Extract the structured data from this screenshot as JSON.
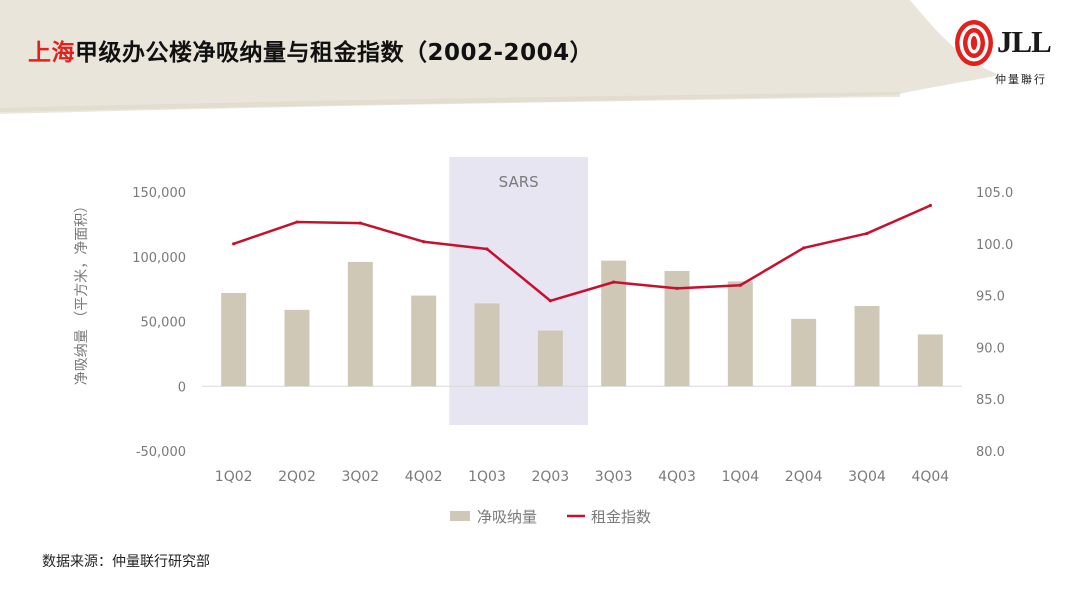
{
  "slide": {
    "title_highlight": "上海",
    "title_rest": "甲级办公楼净吸纳量与租金指数（2002-2004）",
    "logo_text": "JLL",
    "logo_sub": "仲量聯行",
    "source": "数据来源：仲量联行研究部",
    "colors": {
      "accent": "#e2211c",
      "bar": "#cfc8b7",
      "line": "#c8102e",
      "band": "#c9c6e3",
      "brush": "#e6e1d5"
    }
  },
  "chart_data": {
    "type": "bar",
    "categories": [
      "1Q02",
      "2Q02",
      "3Q02",
      "4Q02",
      "1Q03",
      "2Q03",
      "3Q03",
      "4Q03",
      "1Q04",
      "2Q04",
      "3Q04",
      "4Q04"
    ],
    "series": [
      {
        "name": "净吸纳量",
        "type": "bar",
        "axis": "left",
        "values": [
          72000,
          59000,
          96000,
          70000,
          64000,
          43000,
          97000,
          89000,
          81000,
          52000,
          62000,
          40000
        ]
      },
      {
        "name": "租金指数",
        "type": "line",
        "axis": "right",
        "values": [
          100.0,
          102.1,
          102.0,
          100.2,
          99.5,
          94.5,
          96.3,
          95.7,
          96.0,
          99.6,
          101.0,
          103.7
        ]
      }
    ],
    "ylabel": "净吸纳量 （平方米，净面积）",
    "ylim": [
      -50000,
      150000
    ],
    "yticks": [
      "-50,000",
      "0",
      "50,000",
      "100,000",
      "150,000"
    ],
    "ylim_right": [
      80.0,
      105.0
    ],
    "yticks_right": [
      "80.0",
      "85.0",
      "90.0",
      "95.0",
      "100.0",
      "105.0"
    ],
    "annotation": {
      "label": "SARS",
      "span": [
        "1Q03",
        "2Q03"
      ]
    },
    "grid": false,
    "legend_position": "bottom"
  }
}
